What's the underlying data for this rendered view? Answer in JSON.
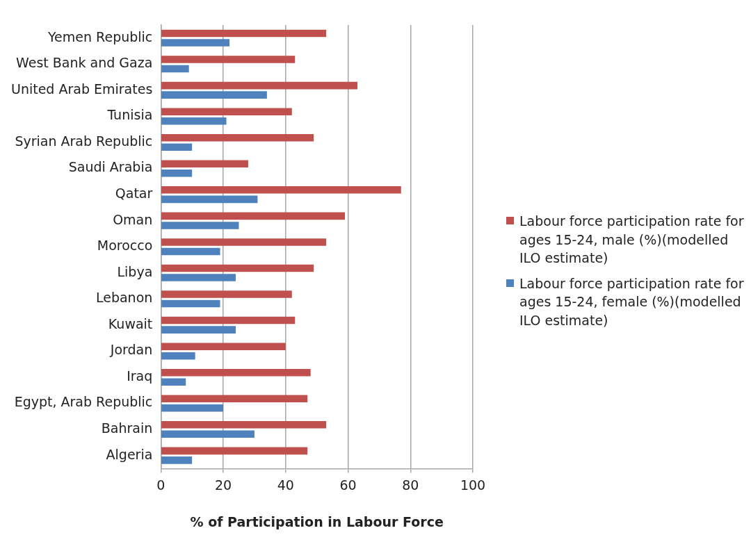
{
  "chart_data": {
    "type": "bar",
    "orientation": "horizontal",
    "xlabel": "% of Participation in Labour Force",
    "categories": [
      "Yemen Republic",
      "West Bank and Gaza",
      "United Arab Emirates",
      "Tunisia",
      "Syrian Arab Republic",
      "Saudi Arabia",
      "Qatar",
      "Oman",
      "Morocco",
      "Libya",
      "Lebanon",
      "Kuwait",
      "Jordan",
      "Iraq",
      "Egypt, Arab Republic",
      "Bahrain",
      "Algeria"
    ],
    "series": [
      {
        "name": "Labour force participation rate for ages 15-24, male (%)(modelled ILO estimate)",
        "color": "#c0504d",
        "values": [
          53,
          43,
          63,
          42,
          49,
          28,
          77,
          59,
          53,
          49,
          42,
          43,
          40,
          48,
          47,
          53,
          47
        ]
      },
      {
        "name": "Labour force participation rate for ages 15-24, female (%)(modelled ILO estimate)",
        "color": "#4f81bd",
        "values": [
          22,
          9,
          34,
          21,
          10,
          10,
          31,
          25,
          19,
          24,
          19,
          24,
          11,
          8,
          20,
          30,
          10
        ]
      }
    ],
    "xlim": [
      0,
      100
    ],
    "xticks": [
      0,
      20,
      40,
      60,
      80,
      100
    ],
    "grid": "x",
    "legend": "right"
  }
}
